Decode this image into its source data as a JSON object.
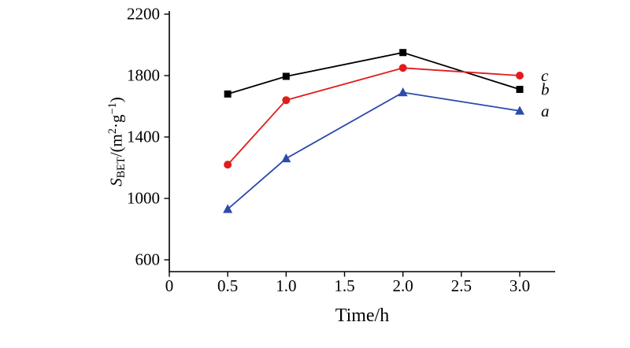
{
  "chart_data": {
    "type": "line",
    "title": "",
    "xlabel": "Time/h",
    "ylabel_plain": "S_BET/(m^2·g^-1)",
    "ylabel_parts": {
      "symbol": "S",
      "subscript": "BET",
      "unit_open": "/(m",
      "sup1": "2",
      "unit_mid": "·g",
      "sup2": "−1",
      "unit_close": ")"
    },
    "x": [
      0.5,
      1.0,
      2.0,
      3.0
    ],
    "xlim": [
      0,
      3.3
    ],
    "ylim": [
      600,
      2200
    ],
    "xticks": [
      0,
      0.5,
      1.0,
      1.5,
      2.0,
      2.5,
      3.0
    ],
    "xtick_labels": [
      "0",
      "0.5",
      "1.0",
      "1.5",
      "2.0",
      "2.5",
      "3.0"
    ],
    "yticks": [
      600,
      1000,
      1400,
      1800,
      2200
    ],
    "ytick_labels": [
      "600",
      "1000",
      "1400",
      "1800",
      "2200"
    ],
    "grid": false,
    "legend_position": "right-end-labels",
    "axis_color": "#000000",
    "series": [
      {
        "name": "a",
        "marker": "triangle",
        "color": "#2b4bad",
        "values": [
          930,
          1260,
          1690,
          1570
        ]
      },
      {
        "name": "b",
        "marker": "square",
        "color": "#000000",
        "values": [
          1680,
          1795,
          1950,
          1710
        ]
      },
      {
        "name": "c",
        "marker": "circle",
        "color": "#e01c1c",
        "values": [
          1220,
          1640,
          1850,
          1800
        ]
      }
    ]
  }
}
